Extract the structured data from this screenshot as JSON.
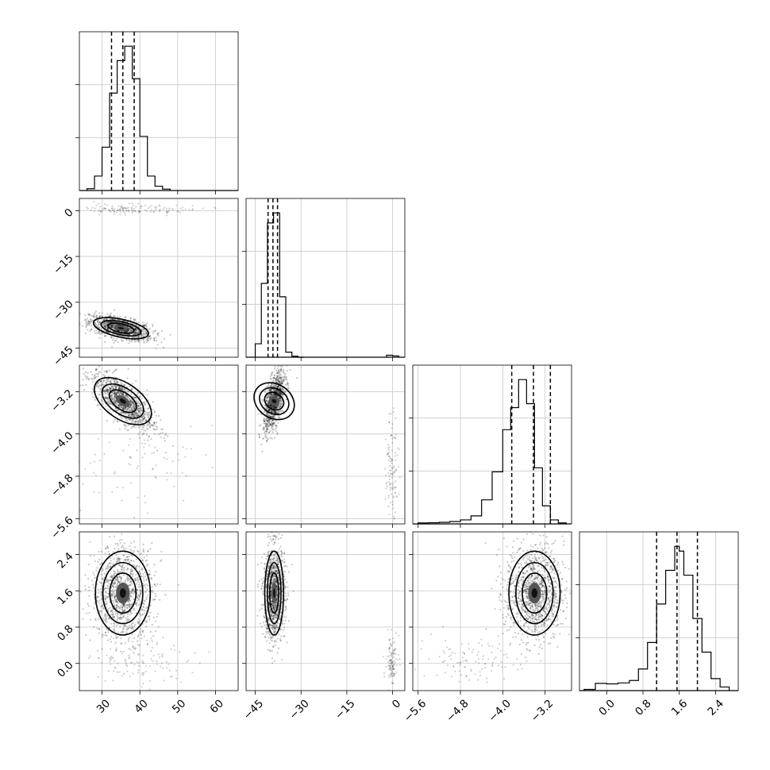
{
  "chart_data": {
    "type": "corner",
    "parameters": [
      {
        "range": [
          24,
          66
        ],
        "ticks": [
          30,
          40,
          50,
          60
        ],
        "labels": [
          "30",
          "40",
          "50",
          "60"
        ]
      },
      {
        "range": [
          -48,
          4
        ],
        "ticks": [
          -45,
          -30,
          -15,
          0
        ],
        "labels": [
          "−45",
          "−30",
          "−15",
          "0"
        ]
      },
      {
        "range": [
          -5.7,
          -2.7
        ],
        "ticks": [
          -5.6,
          -4.8,
          -4.0,
          -3.2
        ],
        "labels": [
          "−5.6",
          "−4.8",
          "−4.0",
          "−3.2"
        ]
      },
      {
        "range": [
          -0.6,
          2.9
        ],
        "ticks": [
          0.0,
          0.8,
          1.6,
          2.4
        ],
        "labels": [
          "0.0",
          "0.8",
          "1.6",
          "2.4"
        ]
      }
    ],
    "histograms": [
      {
        "edges": [
          26,
          28,
          30,
          32,
          34,
          36,
          38,
          40,
          42,
          44,
          46,
          48
        ],
        "counts": [
          0.5,
          4,
          12,
          27,
          36,
          40,
          31,
          15,
          4,
          1.2,
          0.4
        ],
        "quantiles": [
          32.5,
          35.5,
          38.5
        ]
      },
      {
        "edges": [
          -45,
          -43,
          -41,
          -39,
          -37,
          -35,
          -33,
          -31,
          -29
        ],
        "counts": [
          4,
          22,
          40,
          43,
          18,
          1.5,
          0.3,
          0
        ],
        "tail": {
          "edges": [
            -2,
            0,
            2
          ],
          "counts": [
            0.6,
            0.4
          ]
        },
        "quantiles": [
          -40.8,
          -39.2,
          -37.7
        ]
      },
      {
        "edges": [
          -5.6,
          -5.4,
          -5.2,
          -5.0,
          -4.8,
          -4.6,
          -4.4,
          -4.2,
          -4.0,
          -3.85,
          -3.7,
          -3.55,
          -3.4,
          -3.25,
          -3.1,
          -2.95,
          -2.8
        ],
        "counts": [
          0.5,
          0.6,
          0.8,
          1.2,
          2,
          4,
          12,
          26,
          47,
          58,
          72,
          60,
          28,
          9,
          2,
          0.5
        ],
        "quantiles": [
          -3.83,
          -3.42,
          -3.1
        ]
      },
      {
        "edges": [
          -0.5,
          -0.25,
          0.0,
          0.25,
          0.5,
          0.7,
          0.9,
          1.1,
          1.3,
          1.5,
          1.6,
          1.7,
          1.9,
          2.1,
          2.3,
          2.5,
          2.7
        ],
        "counts": [
          0.5,
          3,
          2.8,
          3.2,
          4.2,
          9,
          20,
          36,
          50,
          60,
          58,
          48,
          30,
          16,
          5,
          1.5
        ],
        "quantiles": [
          1.1,
          1.55,
          2.0
        ]
      }
    ],
    "pairs": [
      {
        "xi": 0,
        "yi": 1,
        "center": [
          35,
          -38.5
        ],
        "sx": 3.3,
        "sy": 1.6,
        "rho": -0.55,
        "extras": [
          {
            "center": [
              38,
              0.5
            ],
            "sx": 8,
            "sy": 0.8,
            "n": 140,
            "rho": 0
          }
        ]
      },
      {
        "xi": 0,
        "yi": 2,
        "center": [
          35.5,
          -3.38
        ],
        "sx": 3.2,
        "sy": 0.22,
        "rho": -0.72,
        "extras": [
          {
            "center": [
              40,
              -4.6
            ],
            "sx": 8,
            "sy": 0.45,
            "n": 80,
            "rho": 0
          }
        ]
      },
      {
        "xi": 1,
        "yi": 2,
        "center": [
          -38.8,
          -3.38
        ],
        "sx": 1.4,
        "sy": 0.22,
        "rho": 0.55,
        "extras": [
          {
            "center": [
              -0.2,
              -4.6
            ],
            "sx": 1.0,
            "sy": 0.45,
            "n": 110,
            "rho": 0
          }
        ]
      },
      {
        "xi": 0,
        "yi": 3,
        "center": [
          35.5,
          1.55
        ],
        "sx": 3.3,
        "sy": 0.42,
        "rho": 0,
        "extras": [
          {
            "center": [
              40,
              0.05
            ],
            "sx": 8,
            "sy": 0.25,
            "n": 110,
            "rho": 0
          }
        ]
      },
      {
        "xi": 1,
        "yi": 3,
        "center": [
          -38.8,
          1.55
        ],
        "sx": 1.4,
        "sy": 0.42,
        "rho": 0,
        "extras": [
          {
            "center": [
              -0.3,
              0.05
            ],
            "sx": 1.0,
            "sy": 0.25,
            "n": 110,
            "rho": 0
          }
        ]
      },
      {
        "xi": 2,
        "yi": 3,
        "center": [
          -3.4,
          1.55
        ],
        "sx": 0.22,
        "sy": 0.42,
        "rho": 0,
        "extras": [
          {
            "center": [
              -4.6,
              0.05
            ],
            "sx": 0.5,
            "sy": 0.25,
            "n": 110,
            "rho": 0
          }
        ]
      }
    ]
  }
}
